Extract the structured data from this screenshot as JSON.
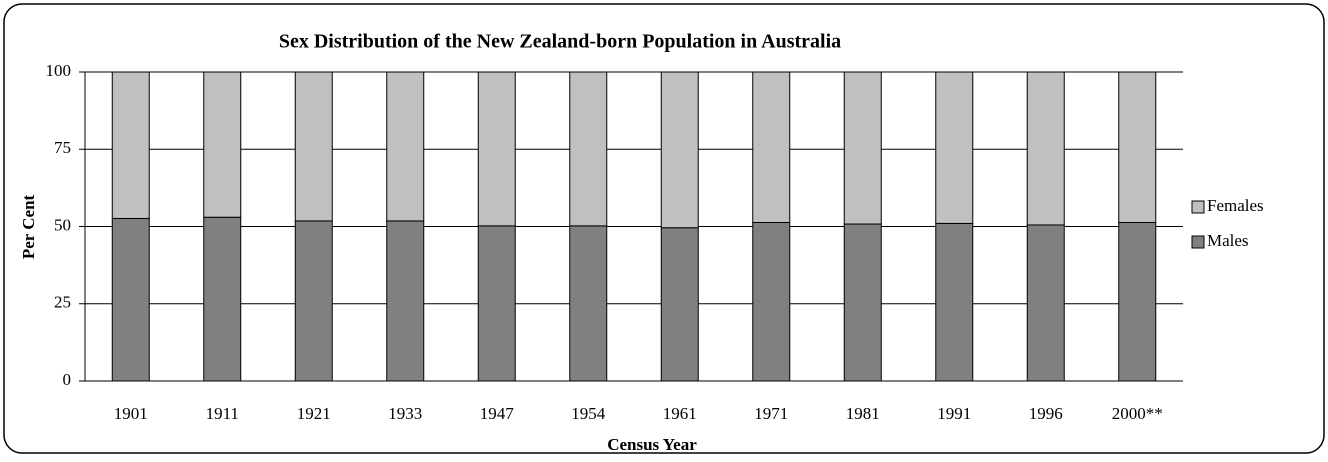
{
  "chart_data": {
    "type": "stacked_bar",
    "title": "Sex Distribution of the New Zealand-born Population in Australia",
    "x_label": "Census Year",
    "y_label": "Per Cent",
    "categories": [
      "1901",
      "1911",
      "1921",
      "1933",
      "1947",
      "1954",
      "1961",
      "1971",
      "1981",
      "1991",
      "1996",
      "2000**"
    ],
    "series": [
      {
        "name": "Males",
        "color": "#808080",
        "values": [
          52.6,
          53.0,
          51.8,
          51.8,
          50.2,
          50.2,
          49.6,
          51.3,
          50.8,
          51.0,
          50.5,
          51.3
        ]
      },
      {
        "name": "Females",
        "color": "#c0c0c0",
        "values": [
          47.4,
          47.0,
          48.2,
          48.2,
          49.8,
          49.8,
          50.4,
          48.7,
          49.2,
          49.0,
          49.5,
          48.7
        ]
      }
    ],
    "ylim": [
      0,
      100
    ],
    "yticks": [
      0,
      25,
      50,
      75,
      100
    ],
    "grid": true,
    "legend": "right"
  }
}
